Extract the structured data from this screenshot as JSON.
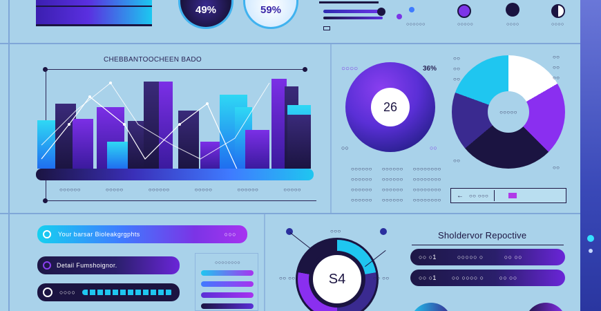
{
  "top": {
    "gauge_left_value": "49%",
    "gauge_right_value": "59%",
    "slider_caption": "○○○○○○",
    "knob_labels": [
      "○○○○○",
      "○○○○",
      "○○○○"
    ]
  },
  "bar_chart": {
    "title": "CHEBBANTOOCHEEN BADO",
    "x_labels": [
      "○○○○○○",
      "○○○○○",
      "○○○○○○",
      "○○○○○",
      "○○○○○○",
      "○○○○○"
    ]
  },
  "donut_panel": {
    "left_top_label": "○○○○",
    "right_top_label": "36%",
    "center_value": "26",
    "left_bottom_label": "○○",
    "right_bottom_label": "○○",
    "pie_center_label": "○○○○○",
    "small_labels_left": [
      "○○",
      "○○",
      "○○",
      "○○"
    ],
    "small_labels_right": [
      "○○",
      "○○",
      "○○",
      "○○"
    ],
    "table_rows": [
      [
        "○○○○○○",
        "○○○○○○",
        "○○○○○○○○"
      ],
      [
        "○○○○○○",
        "○○○○○○",
        "○○○○○○○○"
      ],
      [
        "○○○○○○",
        "○○○○○○",
        "○○○○○○○○"
      ],
      [
        "○○○○○○",
        "○○○○○○",
        "○○○○○○○○"
      ]
    ],
    "legend_text": "○○ ○○○"
  },
  "bottom_left": {
    "search_text": "Your barsar Bioleakgrgphts",
    "search_suffix": "○○○",
    "row2_text": "Detail Fumshoignor.",
    "row3_text": "○○○○",
    "list_header": "○○○○○○○○"
  },
  "bottom_center": {
    "center_value": "S4",
    "top_label": "○○○",
    "left_label": "○○ ○○",
    "right_label": "○○ ○○"
  },
  "bottom_right": {
    "title": "Sholdervor Repoctive",
    "rows": [
      {
        "a": "○○ ○1",
        "b": "○○○○○ ○",
        "c": "○○ ○○"
      },
      {
        "a": "○○ ○1",
        "b": "○○ ○○○○ ○",
        "c": "○○ ○○"
      }
    ]
  }
}
